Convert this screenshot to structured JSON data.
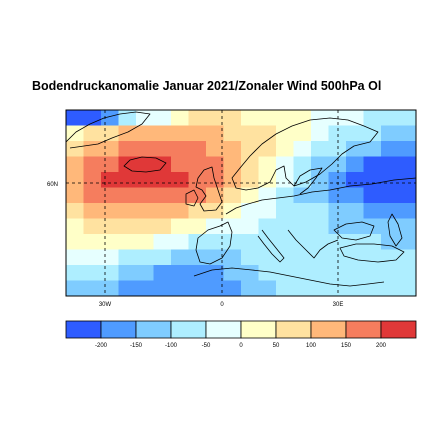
{
  "chart_data": {
    "type": "heatmap",
    "title": "Bodendruckanomalie Januar 2021/Zonaler Wind 500hPa Ol",
    "x_ticks": [
      "30W",
      "0",
      "30E"
    ],
    "y_ticks": [
      "60N"
    ],
    "grid": true,
    "colorbar": {
      "tick_labels": [
        "-200",
        "-150",
        "-100",
        "-50",
        "0",
        "50",
        "100",
        "150",
        "200"
      ],
      "colors": [
        "#2e5cff",
        "#4f9bff",
        "#7fccff",
        "#aeeeff",
        "#e6ffff",
        "#ffffc8",
        "#ffe2a0",
        "#ffb87a",
        "#f57d5e",
        "#e03838"
      ],
      "bins": [
        [
          "<-200"
        ],
        [
          "-200",
          "-150"
        ],
        [
          "-150",
          "-100"
        ],
        [
          "-100",
          "-50"
        ],
        [
          "-50",
          "0"
        ],
        [
          "0",
          "50"
        ],
        [
          "50",
          "100"
        ],
        [
          "100",
          "150"
        ],
        [
          "150",
          "200"
        ],
        [
          ">200"
        ]
      ]
    },
    "grid_values": [
      [
        0,
        0,
        1,
        3,
        4,
        4,
        5,
        6,
        6,
        6,
        5,
        5,
        5,
        5,
        4,
        4,
        4,
        3,
        3,
        3
      ],
      [
        5,
        6,
        6,
        7,
        7,
        7,
        7,
        7,
        7,
        6,
        6,
        6,
        5,
        5,
        4,
        3,
        3,
        3,
        2,
        2
      ],
      [
        6,
        7,
        7,
        8,
        8,
        8,
        8,
        8,
        7,
        7,
        6,
        6,
        5,
        4,
        3,
        3,
        2,
        2,
        1,
        1
      ],
      [
        7,
        8,
        8,
        9,
        9,
        9,
        8,
        8,
        8,
        7,
        6,
        5,
        4,
        3,
        2,
        2,
        1,
        0,
        0,
        0
      ],
      [
        7,
        8,
        9,
        9,
        9,
        9,
        9,
        8,
        8,
        7,
        6,
        5,
        4,
        3,
        2,
        1,
        0,
        0,
        0,
        0
      ],
      [
        7,
        8,
        8,
        8,
        8,
        8,
        8,
        8,
        7,
        6,
        5,
        4,
        3,
        2,
        2,
        1,
        1,
        0,
        0,
        0
      ],
      [
        6,
        7,
        7,
        7,
        7,
        7,
        7,
        6,
        6,
        5,
        4,
        4,
        3,
        3,
        3,
        2,
        2,
        1,
        1,
        1
      ],
      [
        5,
        6,
        6,
        6,
        6,
        6,
        5,
        5,
        4,
        4,
        4,
        3,
        3,
        3,
        3,
        2,
        2,
        2,
        2,
        2
      ],
      [
        5,
        5,
        5,
        5,
        5,
        4,
        4,
        3,
        3,
        3,
        3,
        3,
        3,
        3,
        3,
        3,
        3,
        3,
        2,
        2
      ],
      [
        4,
        4,
        4,
        3,
        3,
        3,
        2,
        2,
        2,
        2,
        3,
        3,
        3,
        3,
        3,
        3,
        3,
        3,
        3,
        3
      ],
      [
        3,
        3,
        3,
        2,
        2,
        1,
        1,
        1,
        1,
        2,
        2,
        3,
        3,
        3,
        3,
        3,
        3,
        3,
        3,
        3
      ],
      [
        2,
        2,
        2,
        1,
        1,
        1,
        1,
        1,
        1,
        1,
        2,
        2,
        3,
        3,
        3,
        3,
        3,
        3,
        3,
        3
      ]
    ]
  }
}
